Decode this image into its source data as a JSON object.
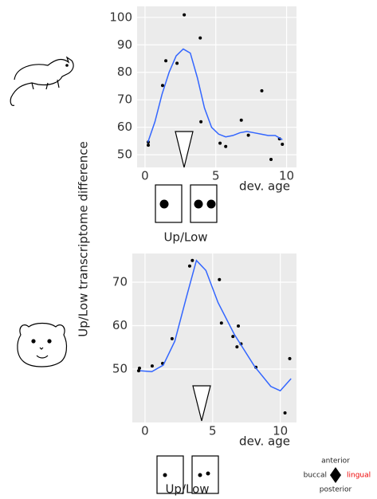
{
  "y_label": "Up/Low transcriptome difference",
  "compass": {
    "top": "anterior",
    "left": "buccal",
    "right": "lingual",
    "bottom": "posterior"
  },
  "chart_data": [
    {
      "type": "scatter",
      "x_label": "dev. age",
      "annotation": "Up/Low",
      "grid": true,
      "xlim": [
        -0.56,
        10.7
      ],
      "ylim": [
        45.4,
        104
      ],
      "xticks": [
        0,
        5,
        10
      ],
      "yticks": [
        50,
        60,
        70,
        80,
        90,
        100
      ],
      "series": [
        {
          "type": "scatter",
          "color": "#000000",
          "x": [
            0.23,
            0.23,
            1.24,
            1.47,
            2.26,
            2.77,
            3.9,
            3.95,
            5.3,
            5.7,
            6.8,
            7.3,
            8.25,
            8.9,
            9.5,
            9.7
          ],
          "values": [
            54.6,
            53.5,
            75.2,
            84.2,
            83.3,
            100.9,
            92.5,
            62,
            54.2,
            53,
            62.6,
            57.1,
            73.3,
            48.3,
            55.8,
            53.8
          ]
        },
        {
          "type": "line",
          "color": "#3366ff",
          "x": [
            0.2,
            0.7,
            1.2,
            1.7,
            2.2,
            2.7,
            3.2,
            3.7,
            4.2,
            4.7,
            5.2,
            5.7,
            6.2,
            6.7,
            7.2,
            7.7,
            8.2,
            8.7,
            9.2,
            9.7
          ],
          "values": [
            54.5,
            62,
            72,
            80,
            86,
            88.5,
            87,
            78,
            67,
            60,
            57.5,
            56.5,
            57,
            58,
            58.5,
            58,
            57.5,
            57,
            57,
            55.5
          ]
        }
      ]
    },
    {
      "type": "scatter",
      "x_label": "dev. age",
      "annotation": "Up/Low",
      "grid": true,
      "xlim": [
        -0.94,
        11.2
      ],
      "ylim": [
        37.7,
        76.6
      ],
      "xticks": [
        0,
        5,
        10
      ],
      "yticks": [
        50,
        60,
        70
      ],
      "series": [
        {
          "type": "scatter",
          "color": "#000000",
          "x": [
            -0.47,
            -0.41,
            0.53,
            1.3,
            2.0,
            3.3,
            3.5,
            5.5,
            5.65,
            6.5,
            6.9,
            6.8,
            7.1,
            8.2,
            10.35,
            10.7
          ],
          "values": [
            49.6,
            50.2,
            50.7,
            51.3,
            57,
            73.7,
            75,
            70.6,
            60.6,
            57.5,
            59.9,
            55.1,
            55.8,
            50.4,
            39.9,
            52.4
          ]
        },
        {
          "type": "line",
          "color": "#3366ff",
          "x": [
            -0.35,
            0.5,
            1.35,
            2.2,
            3.1,
            3.8,
            4.5,
            5.4,
            6.6,
            8.1,
            9.3,
            10,
            10.8
          ],
          "values": [
            49.6,
            49.4,
            50.9,
            56.4,
            67,
            75,
            72.7,
            65.3,
            58,
            50.6,
            46,
            45,
            47.8
          ]
        }
      ]
    }
  ]
}
